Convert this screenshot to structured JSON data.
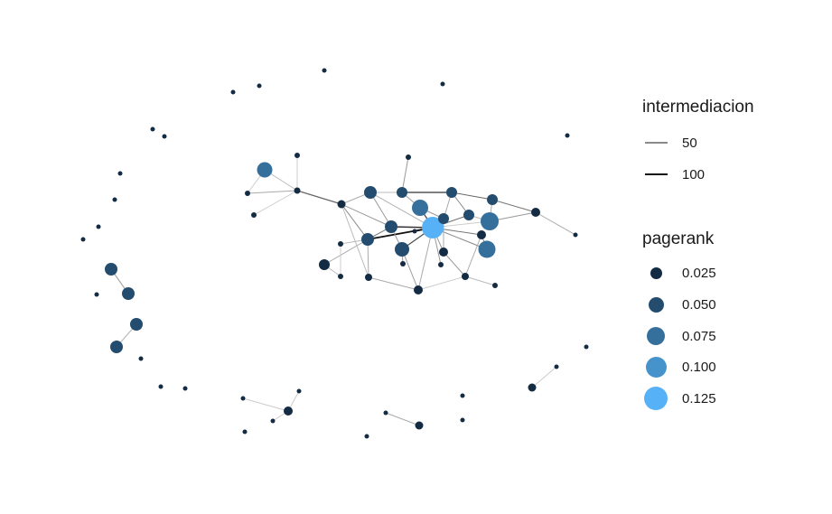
{
  "legend": {
    "edge_title": "intermediacion",
    "edge_items": [
      {
        "label": "50",
        "value": 50,
        "color": "#8a8a8a"
      },
      {
        "label": "100",
        "value": 100,
        "color": "#111111"
      }
    ],
    "node_title": "pagerank",
    "node_items": [
      {
        "label": "0.025",
        "value": 0.025,
        "color": "#132b43"
      },
      {
        "label": "0.050",
        "value": 0.05,
        "color": "#244c6e"
      },
      {
        "label": "0.075",
        "value": 0.075,
        "color": "#356f9b"
      },
      {
        "label": "0.100",
        "value": 0.1,
        "color": "#4693cb"
      },
      {
        "label": "0.125",
        "value": 0.125,
        "color": "#56b1f7"
      }
    ]
  },
  "colors": {
    "low": "#132b43",
    "high": "#56b1f7",
    "background": "#ffffff"
  }
}
